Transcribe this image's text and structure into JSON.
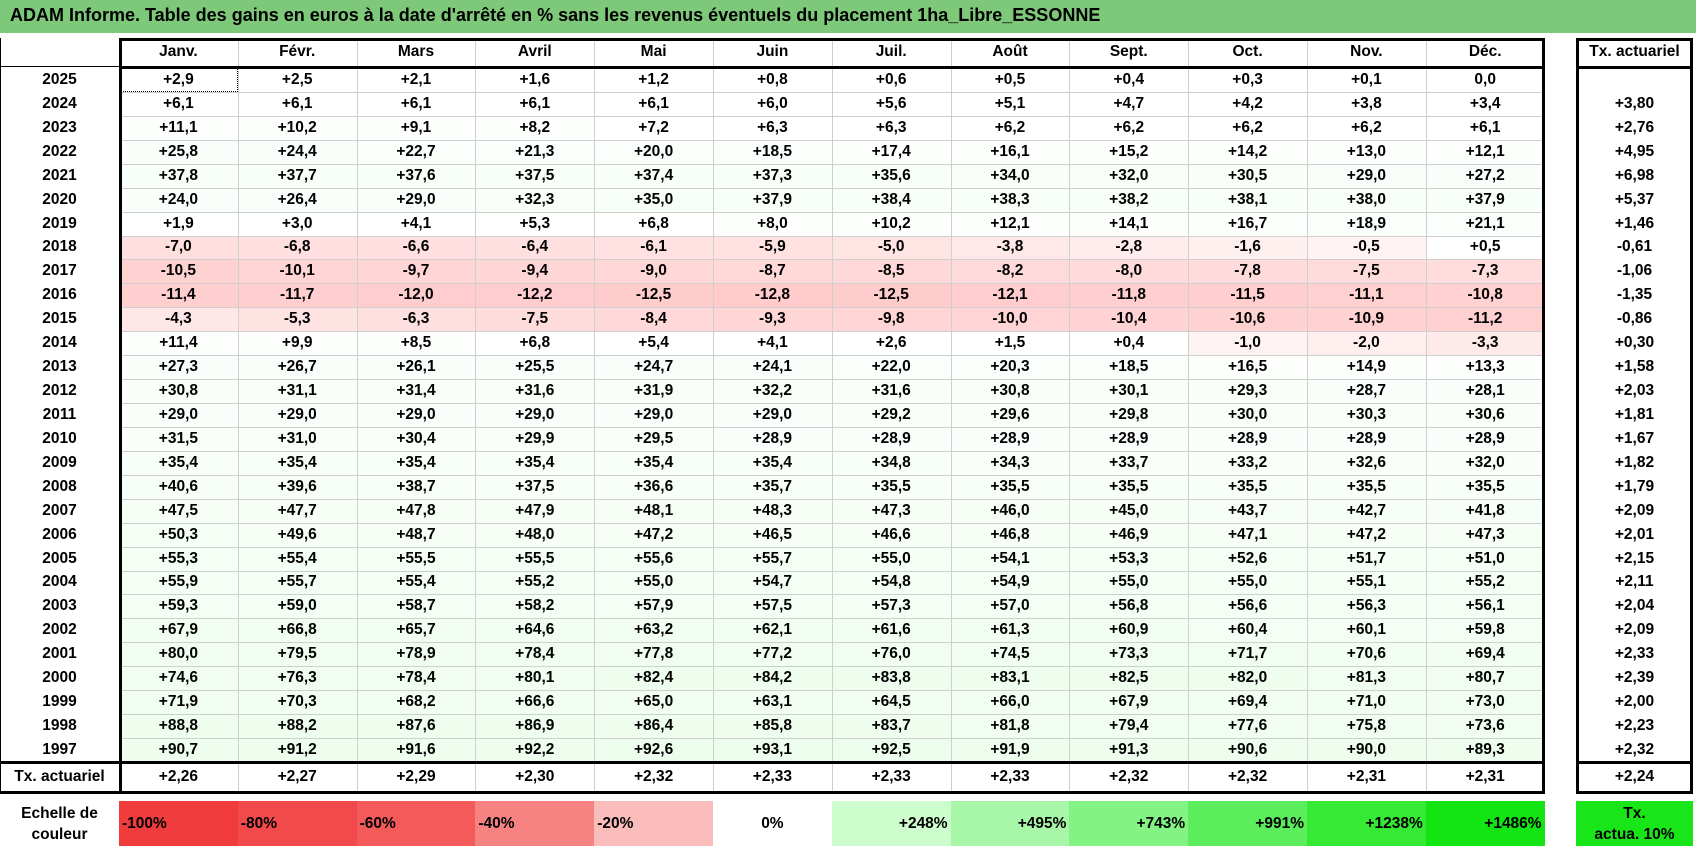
{
  "title": "ADAM Informe. Table des gains en euros à la date d'arrêté en % sans les revenus éventuels du placement 1ha_Libre_ESSONNE",
  "months": [
    "Janv.",
    "Févr.",
    "Mars",
    "Avril",
    "Mai",
    "Juin",
    "Juil.",
    "Août",
    "Sept.",
    "Oct.",
    "Nov.",
    "Déc."
  ],
  "rate_header": "Tx. actuariel",
  "rows": [
    {
      "year": "2025",
      "values": [
        "+2,9",
        "+2,5",
        "+2,1",
        "+1,6",
        "+1,2",
        "+0,8",
        "+0,6",
        "+0,5",
        "+0,4",
        "+0,3",
        "+0,1",
        "0,0"
      ],
      "rate": ""
    },
    {
      "year": "2024",
      "values": [
        "+6,1",
        "+6,1",
        "+6,1",
        "+6,1",
        "+6,1",
        "+6,0",
        "+5,6",
        "+5,1",
        "+4,7",
        "+4,2",
        "+3,8",
        "+3,4"
      ],
      "rate": "+3,80"
    },
    {
      "year": "2023",
      "values": [
        "+11,1",
        "+10,2",
        "+9,1",
        "+8,2",
        "+7,2",
        "+6,3",
        "+6,3",
        "+6,2",
        "+6,2",
        "+6,2",
        "+6,2",
        "+6,1"
      ],
      "rate": "+2,76"
    },
    {
      "year": "2022",
      "values": [
        "+25,8",
        "+24,4",
        "+22,7",
        "+21,3",
        "+20,0",
        "+18,5",
        "+17,4",
        "+16,1",
        "+15,2",
        "+14,2",
        "+13,0",
        "+12,1"
      ],
      "rate": "+4,95"
    },
    {
      "year": "2021",
      "values": [
        "+37,8",
        "+37,7",
        "+37,6",
        "+37,5",
        "+37,4",
        "+37,3",
        "+35,6",
        "+34,0",
        "+32,0",
        "+30,5",
        "+29,0",
        "+27,2"
      ],
      "rate": "+6,98"
    },
    {
      "year": "2020",
      "values": [
        "+24,0",
        "+26,4",
        "+29,0",
        "+32,3",
        "+35,0",
        "+37,9",
        "+38,4",
        "+38,3",
        "+38,2",
        "+38,1",
        "+38,0",
        "+37,9"
      ],
      "rate": "+5,37"
    },
    {
      "year": "2019",
      "values": [
        "+1,9",
        "+3,0",
        "+4,1",
        "+5,3",
        "+6,8",
        "+8,0",
        "+10,2",
        "+12,1",
        "+14,1",
        "+16,7",
        "+18,9",
        "+21,1"
      ],
      "rate": "+1,46"
    },
    {
      "year": "2018",
      "values": [
        "-7,0",
        "-6,8",
        "-6,6",
        "-6,4",
        "-6,1",
        "-5,9",
        "-5,0",
        "-3,8",
        "-2,8",
        "-1,6",
        "-0,5",
        "+0,5"
      ],
      "rate": "-0,61"
    },
    {
      "year": "2017",
      "values": [
        "-10,5",
        "-10,1",
        "-9,7",
        "-9,4",
        "-9,0",
        "-8,7",
        "-8,5",
        "-8,2",
        "-8,0",
        "-7,8",
        "-7,5",
        "-7,3"
      ],
      "rate": "-1,06"
    },
    {
      "year": "2016",
      "values": [
        "-11,4",
        "-11,7",
        "-12,0",
        "-12,2",
        "-12,5",
        "-12,8",
        "-12,5",
        "-12,1",
        "-11,8",
        "-11,5",
        "-11,1",
        "-10,8"
      ],
      "rate": "-1,35"
    },
    {
      "year": "2015",
      "values": [
        "-4,3",
        "-5,3",
        "-6,3",
        "-7,5",
        "-8,4",
        "-9,3",
        "-9,8",
        "-10,0",
        "-10,4",
        "-10,6",
        "-10,9",
        "-11,2"
      ],
      "rate": "-0,86"
    },
    {
      "year": "2014",
      "values": [
        "+11,4",
        "+9,9",
        "+8,5",
        "+6,8",
        "+5,4",
        "+4,1",
        "+2,6",
        "+1,5",
        "+0,4",
        "-1,0",
        "-2,0",
        "-3,3"
      ],
      "rate": "+0,30"
    },
    {
      "year": "2013",
      "values": [
        "+27,3",
        "+26,7",
        "+26,1",
        "+25,5",
        "+24,7",
        "+24,1",
        "+22,0",
        "+20,3",
        "+18,5",
        "+16,5",
        "+14,9",
        "+13,3"
      ],
      "rate": "+1,58"
    },
    {
      "year": "2012",
      "values": [
        "+30,8",
        "+31,1",
        "+31,4",
        "+31,6",
        "+31,9",
        "+32,2",
        "+31,6",
        "+30,8",
        "+30,1",
        "+29,3",
        "+28,7",
        "+28,1"
      ],
      "rate": "+2,03"
    },
    {
      "year": "2011",
      "values": [
        "+29,0",
        "+29,0",
        "+29,0",
        "+29,0",
        "+29,0",
        "+29,0",
        "+29,2",
        "+29,6",
        "+29,8",
        "+30,0",
        "+30,3",
        "+30,6"
      ],
      "rate": "+1,81"
    },
    {
      "year": "2010",
      "values": [
        "+31,5",
        "+31,0",
        "+30,4",
        "+29,9",
        "+29,5",
        "+28,9",
        "+28,9",
        "+28,9",
        "+28,9",
        "+28,9",
        "+28,9",
        "+28,9"
      ],
      "rate": "+1,67"
    },
    {
      "year": "2009",
      "values": [
        "+35,4",
        "+35,4",
        "+35,4",
        "+35,4",
        "+35,4",
        "+35,4",
        "+34,8",
        "+34,3",
        "+33,7",
        "+33,2",
        "+32,6",
        "+32,0"
      ],
      "rate": "+1,82"
    },
    {
      "year": "2008",
      "values": [
        "+40,6",
        "+39,6",
        "+38,7",
        "+37,5",
        "+36,6",
        "+35,7",
        "+35,5",
        "+35,5",
        "+35,5",
        "+35,5",
        "+35,5",
        "+35,5"
      ],
      "rate": "+1,79"
    },
    {
      "year": "2007",
      "values": [
        "+47,5",
        "+47,7",
        "+47,8",
        "+47,9",
        "+48,1",
        "+48,3",
        "+47,3",
        "+46,0",
        "+45,0",
        "+43,7",
        "+42,7",
        "+41,8"
      ],
      "rate": "+2,09"
    },
    {
      "year": "2006",
      "values": [
        "+50,3",
        "+49,6",
        "+48,7",
        "+48,0",
        "+47,2",
        "+46,5",
        "+46,6",
        "+46,8",
        "+46,9",
        "+47,1",
        "+47,2",
        "+47,3"
      ],
      "rate": "+2,01"
    },
    {
      "year": "2005",
      "values": [
        "+55,3",
        "+55,4",
        "+55,5",
        "+55,5",
        "+55,6",
        "+55,7",
        "+55,0",
        "+54,1",
        "+53,3",
        "+52,6",
        "+51,7",
        "+51,0"
      ],
      "rate": "+2,15"
    },
    {
      "year": "2004",
      "values": [
        "+55,9",
        "+55,7",
        "+55,4",
        "+55,2",
        "+55,0",
        "+54,7",
        "+54,8",
        "+54,9",
        "+55,0",
        "+55,0",
        "+55,1",
        "+55,2"
      ],
      "rate": "+2,11"
    },
    {
      "year": "2003",
      "values": [
        "+59,3",
        "+59,0",
        "+58,7",
        "+58,2",
        "+57,9",
        "+57,5",
        "+57,3",
        "+57,0",
        "+56,8",
        "+56,6",
        "+56,3",
        "+56,1"
      ],
      "rate": "+2,04"
    },
    {
      "year": "2002",
      "values": [
        "+67,9",
        "+66,8",
        "+65,7",
        "+64,6",
        "+63,2",
        "+62,1",
        "+61,6",
        "+61,3",
        "+60,9",
        "+60,4",
        "+60,1",
        "+59,8"
      ],
      "rate": "+2,09"
    },
    {
      "year": "2001",
      "values": [
        "+80,0",
        "+79,5",
        "+78,9",
        "+78,4",
        "+77,8",
        "+77,2",
        "+76,0",
        "+74,5",
        "+73,3",
        "+71,7",
        "+70,6",
        "+69,4"
      ],
      "rate": "+2,33"
    },
    {
      "year": "2000",
      "values": [
        "+74,6",
        "+76,3",
        "+78,4",
        "+80,1",
        "+82,4",
        "+84,2",
        "+83,8",
        "+83,1",
        "+82,5",
        "+82,0",
        "+81,3",
        "+80,7"
      ],
      "rate": "+2,39"
    },
    {
      "year": "1999",
      "values": [
        "+71,9",
        "+70,3",
        "+68,2",
        "+66,6",
        "+65,0",
        "+63,1",
        "+64,5",
        "+66,0",
        "+67,9",
        "+69,4",
        "+71,0",
        "+73,0"
      ],
      "rate": "+2,00"
    },
    {
      "year": "1998",
      "values": [
        "+88,8",
        "+88,2",
        "+87,6",
        "+86,9",
        "+86,4",
        "+85,8",
        "+83,7",
        "+81,8",
        "+79,4",
        "+77,6",
        "+75,8",
        "+73,6"
      ],
      "rate": "+2,23"
    },
    {
      "year": "1997",
      "values": [
        "+90,7",
        "+91,2",
        "+91,6",
        "+92,2",
        "+92,6",
        "+93,1",
        "+92,5",
        "+91,9",
        "+91,3",
        "+90,6",
        "+90,0",
        "+89,3"
      ],
      "rate": "+2,32"
    }
  ],
  "footer": {
    "label": "Tx. actuariel",
    "values": [
      "+2,26",
      "+2,27",
      "+2,29",
      "+2,30",
      "+2,32",
      "+2,33",
      "+2,33",
      "+2,33",
      "+2,32",
      "+2,32",
      "+2,31",
      "+2,31"
    ],
    "rate": "+2,24"
  },
  "scale": {
    "label_line1": "Echelle de",
    "label_line2": "couleur",
    "items": [
      {
        "text": "-100%",
        "color": "#f03c3c",
        "align": "left"
      },
      {
        "text": "-80%",
        "color": "#f24a4a",
        "align": "left"
      },
      {
        "text": "-60%",
        "color": "#f45a5a",
        "align": "left"
      },
      {
        "text": "-40%",
        "color": "#f78282",
        "align": "left"
      },
      {
        "text": "-20%",
        "color": "#fbbcbc",
        "align": "left"
      },
      {
        "text": "0%",
        "color": "#ffffff",
        "align": "center"
      },
      {
        "text": "+248%",
        "color": "#cdfccd",
        "align": "right"
      },
      {
        "text": "+495%",
        "color": "#a8f7a8",
        "align": "right"
      },
      {
        "text": "+743%",
        "color": "#83f383",
        "align": "right"
      },
      {
        "text": "+991%",
        "color": "#5ced5c",
        "align": "right"
      },
      {
        "text": "+1238%",
        "color": "#35e935",
        "align": "right"
      },
      {
        "text": "+1486%",
        "color": "#12e512",
        "align": "right"
      }
    ],
    "rate_line1": "Tx.",
    "rate_line2": "actua. 10%",
    "rate_color": "#19e619"
  }
}
